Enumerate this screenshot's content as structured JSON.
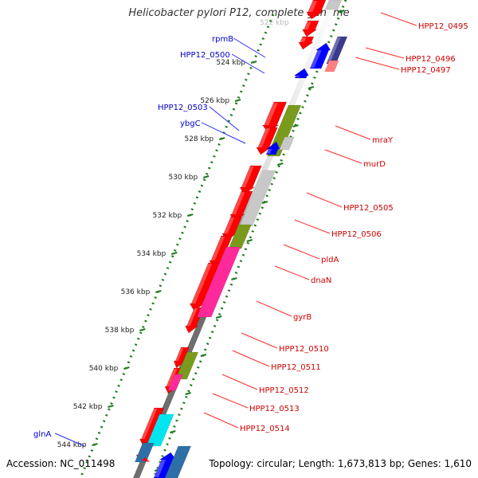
{
  "title": "Helicobacter pylori P12, complete genome",
  "footer": {
    "accession": "Accession: NC_011498",
    "topology": "Topology: circular; Length: 1,673,813 bp; Genes: 1,610"
  },
  "colors": {
    "background": "#ffffff",
    "backbone_dark": "#6e6e6e",
    "backbone_light": "#dcdcdc",
    "forward_gene": "#0000ff",
    "reverse_gene": "#ff0000",
    "label_forward": "#0000cc",
    "label_reverse": "#cc0000",
    "tick": "#1e7a1e",
    "cog_mraY": "#7a9a1e",
    "cog_dnaN": "#ff2a99",
    "cog_unclassified": "#c8c8c8",
    "cog_glnA": "#2e6fa8",
    "cog_hpp0514": "#00e5ee",
    "cog_rpmB": "#3b3a8f"
  },
  "map": {
    "ticks": [
      "524 kbp",
      "526 kbp",
      "528 kbp",
      "530 kbp",
      "532 kbp",
      "534 kbp",
      "536 kbp",
      "538 kbp",
      "540 kbp",
      "542 kbp",
      "544 kbp"
    ],
    "top_tick_partial": "522 kbp",
    "forward_labels": [
      "rpmB",
      "HPP12_0500",
      "HPP12_0503",
      "ybgC",
      "glnA"
    ],
    "reverse_labels": [
      "HPP12_0495",
      "HPP12_0496",
      "HPP12_0497",
      "mraY",
      "murD",
      "HPP12_0505",
      "HPP12_0506",
      "pldA",
      "dnaN",
      "gyrB",
      "HPP12_0510",
      "HPP12_0511",
      "HPP12_0512",
      "HPP12_0513",
      "HPP12_0514"
    ]
  }
}
